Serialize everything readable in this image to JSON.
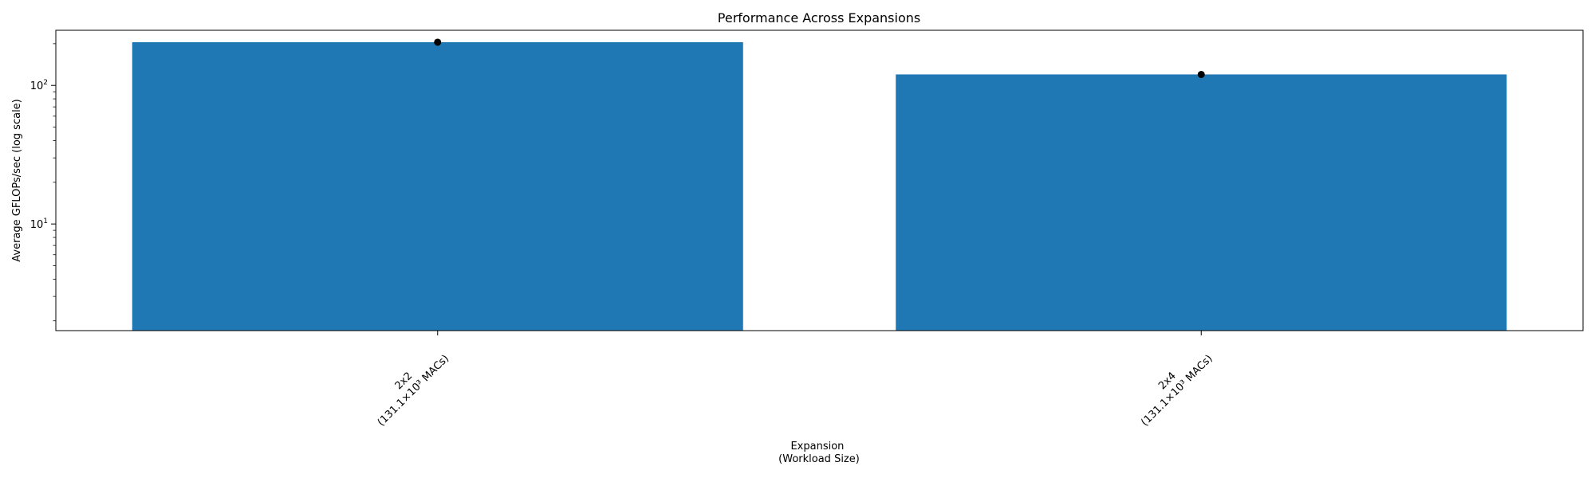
{
  "chart_data": {
    "type": "bar",
    "title": "Performance Across Expansions",
    "xlabel": [
      "Expansion",
      "(Workload Size)"
    ],
    "ylabel": "Average GFLOPs/sec (log scale)",
    "yscale": "log",
    "ylim": [
      1.7,
      250
    ],
    "y_tick_labels": [
      {
        "value": 10,
        "base": "10",
        "exp": "1"
      },
      {
        "value": 100,
        "base": "10",
        "exp": "2"
      }
    ],
    "categories": [
      {
        "name": "2x2",
        "workload": "(131.1×10³ MACs)"
      },
      {
        "name": "2x4",
        "workload": "(131.1×10³ MACs)"
      }
    ],
    "values": [
      205,
      120
    ],
    "markers": [
      205,
      120
    ],
    "grid": false,
    "legend": false,
    "colors": {
      "bar": "#1f77b4",
      "marker": "#000000",
      "axis": "#000000"
    }
  }
}
